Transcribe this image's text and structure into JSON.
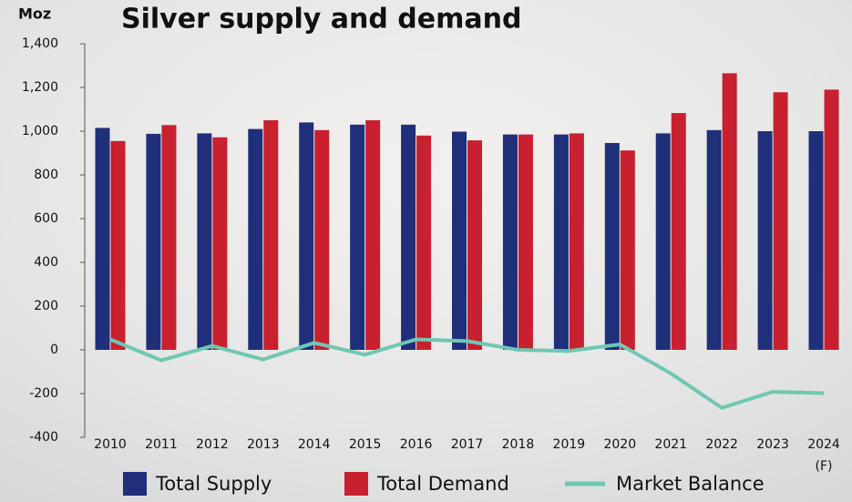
{
  "chart_data": {
    "type": "bar",
    "title": "Silver supply and demand",
    "y_label": "Moz",
    "categories": [
      "2010",
      "2011",
      "2012",
      "2013",
      "2014",
      "2015",
      "2016",
      "2017",
      "2018",
      "2019",
      "2020",
      "2021",
      "2022",
      "2023",
      "2024"
    ],
    "forecast_note": "(F)",
    "series": [
      {
        "name": "Total Supply",
        "type": "bar",
        "color": "#1f2f7a",
        "values": [
          1015,
          988,
          990,
          1010,
          1040,
          1030,
          1030,
          998,
          985,
          985,
          946,
          990,
          1005,
          1000,
          1000
        ]
      },
      {
        "name": "Total Demand",
        "type": "bar",
        "color": "#c8202e",
        "values": [
          955,
          1028,
          972,
          1050,
          1005,
          1050,
          980,
          958,
          985,
          990,
          912,
          1083,
          1265,
          1178,
          1190
        ]
      },
      {
        "name": "Market Balance",
        "type": "line",
        "color": "#6fc7b4",
        "values": [
          48,
          -48,
          18,
          -44,
          32,
          -22,
          48,
          40,
          0,
          -5,
          25,
          -108,
          -265,
          -192,
          -198
        ]
      }
    ],
    "ylim": [
      -400,
      1400
    ],
    "yticks": [
      -400,
      -200,
      0,
      200,
      400,
      600,
      800,
      {
        "value": 1000,
        "label": "1,000"
      },
      {
        "value": 1200,
        "label": "1,200"
      },
      {
        "value": 1400,
        "label": "1,400"
      }
    ]
  }
}
